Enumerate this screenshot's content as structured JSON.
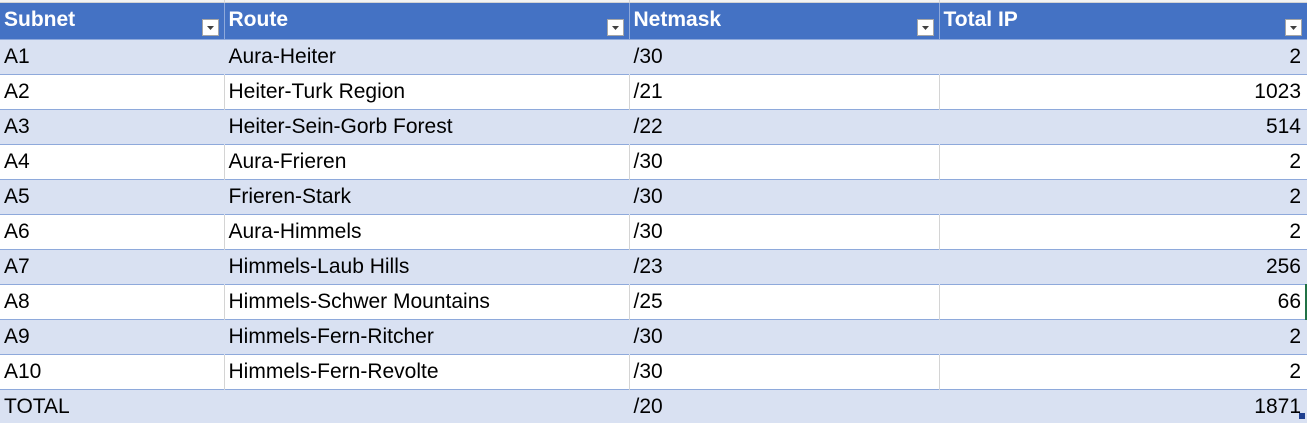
{
  "table": {
    "columns": [
      {
        "label": "Subnet"
      },
      {
        "label": "Route"
      },
      {
        "label": "Netmask"
      },
      {
        "label": "Total IP"
      }
    ],
    "rows": [
      {
        "subnet": "A1",
        "route": "Aura-Heiter",
        "netmask": "/30",
        "total_ip": "2"
      },
      {
        "subnet": "A2",
        "route": "Heiter-Turk Region",
        "netmask": "/21",
        "total_ip": "1023"
      },
      {
        "subnet": "A3",
        "route": "Heiter-Sein-Gorb Forest",
        "netmask": "/22",
        "total_ip": "514"
      },
      {
        "subnet": "A4",
        "route": "Aura-Frieren",
        "netmask": "/30",
        "total_ip": "2"
      },
      {
        "subnet": "A5",
        "route": "Frieren-Stark",
        "netmask": "/30",
        "total_ip": "2"
      },
      {
        "subnet": "A6",
        "route": "Aura-Himmels",
        "netmask": "/30",
        "total_ip": "2"
      },
      {
        "subnet": "A7",
        "route": "Himmels-Laub Hills",
        "netmask": "/23",
        "total_ip": "256"
      },
      {
        "subnet": "A8",
        "route": "Himmels-Schwer Mountains",
        "netmask": "/25",
        "total_ip": "66"
      },
      {
        "subnet": "A9",
        "route": "Himmels-Fern-Ritcher",
        "netmask": "/30",
        "total_ip": "2"
      },
      {
        "subnet": "A10",
        "route": "Himmels-Fern-Revolte",
        "netmask": "/30",
        "total_ip": "2"
      }
    ],
    "total_row": {
      "subnet": "TOTAL",
      "route": "",
      "netmask": "/20",
      "total_ip": "1871"
    }
  },
  "icons": {
    "filter": "filter-dropdown-arrow-icon",
    "resize": "table-resize-handle-icon"
  },
  "colors": {
    "header_bg": "#4472c4",
    "header_text": "#ffffff",
    "band_bg": "#d9e1f2",
    "row_border": "#8ea9db",
    "selection": "#217346"
  }
}
